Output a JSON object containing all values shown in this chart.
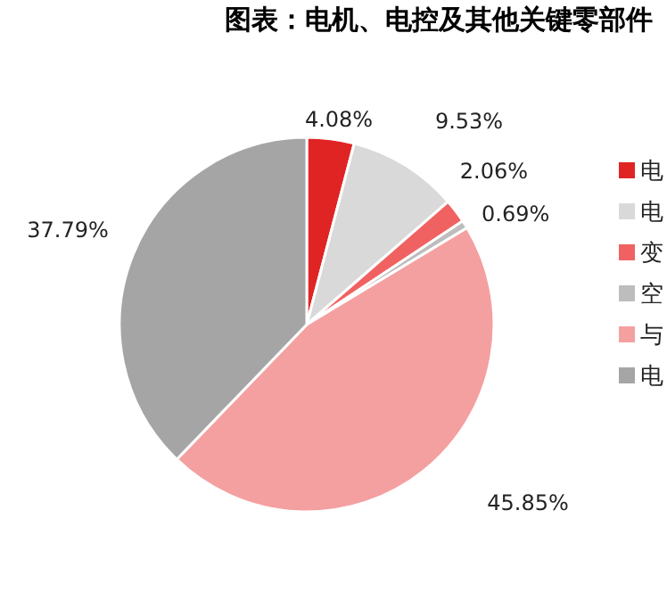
{
  "chart_data": {
    "type": "pie",
    "title": "图表：电机、电控及其他关键零部件",
    "categories": [
      "电",
      "电",
      "变",
      "空",
      "与",
      "电"
    ],
    "values": [
      4.08,
      9.53,
      2.06,
      0.69,
      45.85,
      37.79
    ],
    "value_labels": [
      "4.08%",
      "9.53%",
      "2.06%",
      "0.69%",
      "45.85%",
      "37.79%"
    ],
    "colors": [
      "#e02424",
      "#d9d9d9",
      "#f06262",
      "#bdbdbd",
      "#f4a0a0",
      "#a5a5a5"
    ],
    "legend": "right"
  }
}
